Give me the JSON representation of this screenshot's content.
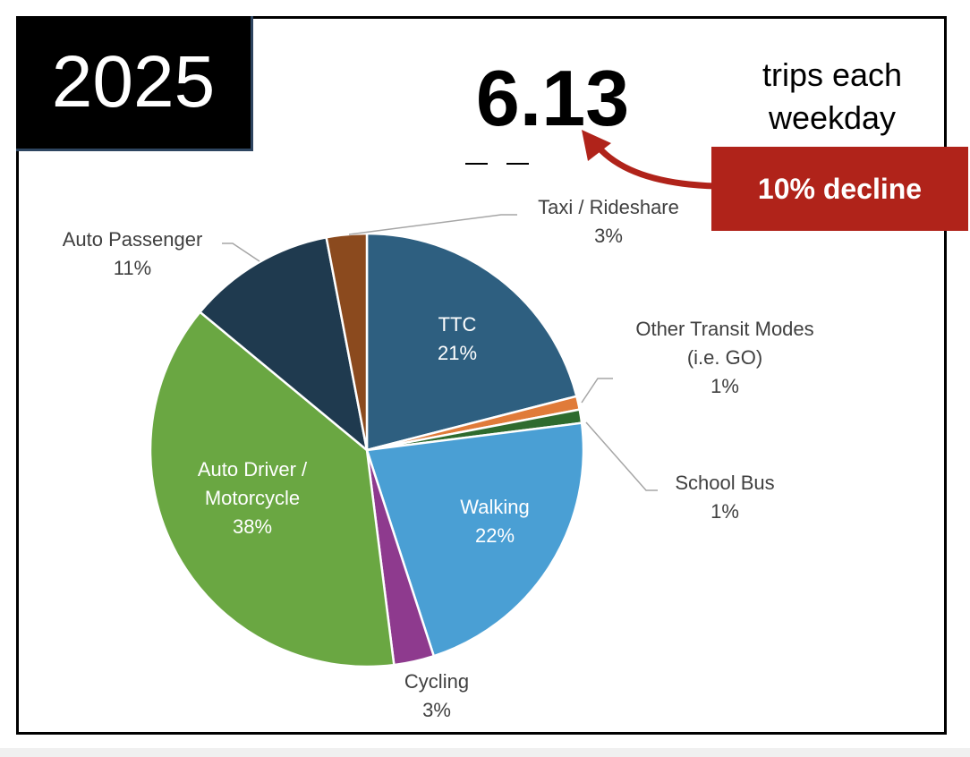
{
  "header": {
    "year": "2025",
    "value": "6.13",
    "unit": "trips each weekday",
    "change": "10% decline"
  },
  "chart_data": {
    "type": "pie",
    "categories": [
      "TTC",
      "Other Transit Modes (i.e. GO)",
      "School Bus",
      "Walking",
      "Cycling",
      "Auto Driver / Motorcycle",
      "Auto Passenger",
      "Taxi / Rideshare"
    ],
    "values": [
      21,
      1,
      1,
      22,
      3,
      38,
      11,
      3
    ],
    "value_labels": [
      "21%",
      "1%",
      "1%",
      "22%",
      "3%",
      "38%",
      "11%",
      "3%"
    ],
    "colors": [
      "#2e5f80",
      "#e07b39",
      "#2e6b2e",
      "#4a9fd4",
      "#8e3a8e",
      "#6aa742",
      "#1f3a4f",
      "#8b4a1e"
    ]
  }
}
